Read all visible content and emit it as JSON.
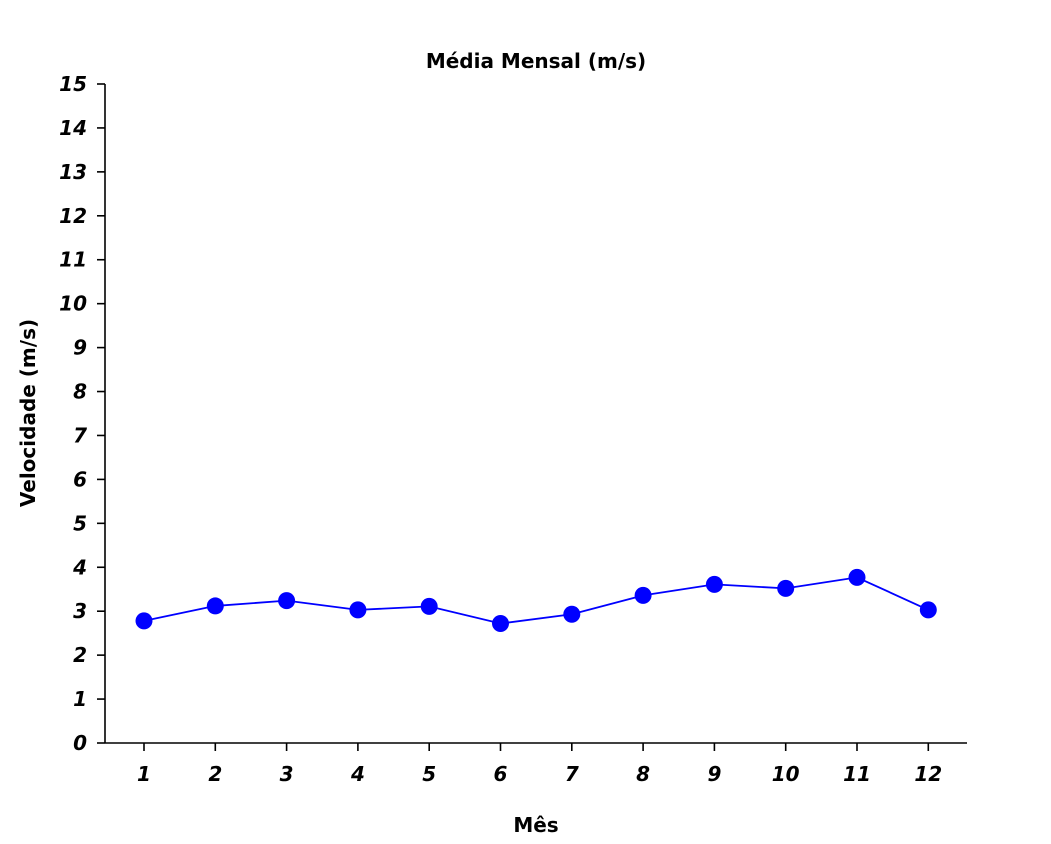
{
  "chart_data": {
    "type": "line",
    "title": "Média Mensal (m/s)",
    "xlabel": "Mês",
    "ylabel": "Velocidade (m/s)",
    "categories": [
      "1",
      "2",
      "3",
      "4",
      "5",
      "6",
      "7",
      "8",
      "9",
      "10",
      "11",
      "12"
    ],
    "yticks": [
      "0",
      "1",
      "2",
      "3",
      "4",
      "5",
      "6",
      "7",
      "8",
      "9",
      "10",
      "11",
      "12",
      "13",
      "14",
      "15"
    ],
    "ylim": [
      0,
      15
    ],
    "grid": false,
    "series": [
      {
        "values": [
          2.78,
          3.12,
          3.24,
          3.03,
          3.11,
          2.72,
          2.93,
          3.36,
          3.61,
          3.52,
          3.77,
          3.03
        ],
        "color": "#0000ff",
        "marker": "circle"
      }
    ]
  }
}
